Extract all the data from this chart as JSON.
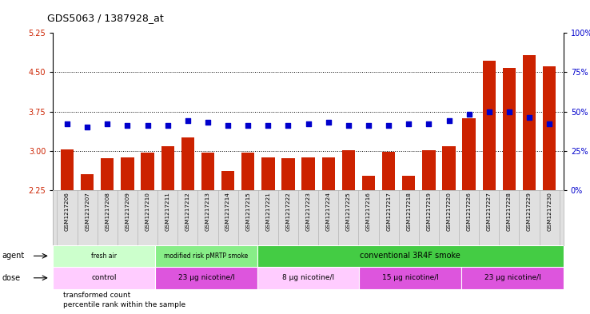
{
  "title": "GDS5063 / 1387928_at",
  "samples": [
    "GSM1217206",
    "GSM1217207",
    "GSM1217208",
    "GSM1217209",
    "GSM1217210",
    "GSM1217211",
    "GSM1217212",
    "GSM1217213",
    "GSM1217214",
    "GSM1217215",
    "GSM1217221",
    "GSM1217222",
    "GSM1217223",
    "GSM1217224",
    "GSM1217225",
    "GSM1217216",
    "GSM1217217",
    "GSM1217218",
    "GSM1217219",
    "GSM1217220",
    "GSM1217226",
    "GSM1217227",
    "GSM1217228",
    "GSM1217229",
    "GSM1217230"
  ],
  "bar_values": [
    3.02,
    2.55,
    2.85,
    2.87,
    2.97,
    3.08,
    3.25,
    2.97,
    2.62,
    2.97,
    2.88,
    2.85,
    2.88,
    2.87,
    3.01,
    2.52,
    2.98,
    2.52,
    3.01,
    3.08,
    3.62,
    4.72,
    4.58,
    4.82,
    4.62
  ],
  "percentile_values": [
    42,
    40,
    42,
    41,
    41,
    41,
    44,
    43,
    41,
    41,
    41,
    41,
    42,
    43,
    41,
    41,
    41,
    42,
    42,
    44,
    48,
    50,
    50,
    46,
    42
  ],
  "bar_color": "#cc2200",
  "percentile_color": "#0000cc",
  "ylim_left": [
    2.25,
    5.25
  ],
  "ylim_right": [
    0,
    100
  ],
  "yticks_left": [
    2.25,
    3.0,
    3.75,
    4.5,
    5.25
  ],
  "yticks_right": [
    0,
    25,
    50,
    75,
    100
  ],
  "hlines": [
    3.0,
    3.75,
    4.5
  ],
  "agent_groups": [
    {
      "label": "fresh air",
      "start": 0,
      "end": 5,
      "color": "#ccffcc"
    },
    {
      "label": "modified risk pMRTP smoke",
      "start": 5,
      "end": 10,
      "color": "#88ee88"
    },
    {
      "label": "conventional 3R4F smoke",
      "start": 10,
      "end": 25,
      "color": "#44cc44"
    }
  ],
  "dose_groups": [
    {
      "label": "control",
      "start": 0,
      "end": 5,
      "color": "#ffccff"
    },
    {
      "label": "23 μg nicotine/l",
      "start": 5,
      "end": 10,
      "color": "#dd55dd"
    },
    {
      "label": "8 μg nicotine/l",
      "start": 10,
      "end": 15,
      "color": "#ffccff"
    },
    {
      "label": "15 μg nicotine/l",
      "start": 15,
      "end": 20,
      "color": "#dd55dd"
    },
    {
      "label": "23 μg nicotine/l",
      "start": 20,
      "end": 25,
      "color": "#dd55dd"
    }
  ],
  "agent_label": "agent",
  "dose_label": "dose",
  "legend_items": [
    {
      "label": "transformed count",
      "color": "#cc2200"
    },
    {
      "label": "percentile rank within the sample",
      "color": "#0000cc"
    }
  ]
}
